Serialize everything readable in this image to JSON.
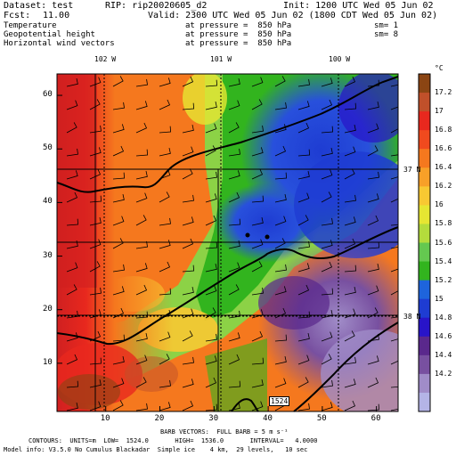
{
  "header": {
    "dataset": "Dataset: test",
    "rip": "RIP: rip20020605_d2",
    "init": "Init: 1200 UTC Wed 05 Jun 02",
    "fcst_label": "Fcst:",
    "fcst_value": "11.00",
    "valid": "Valid: 2300 UTC Wed 05 Jun 02 (1800 CDT Wed 05 Jun 02)"
  },
  "fields": [
    {
      "name": "Temperature",
      "level": "at pressure =  850 hPa",
      "sm": "sm= 1"
    },
    {
      "name": "Geopotential height",
      "level": "at pressure =  850 hPa",
      "sm": "sm= 8"
    },
    {
      "name": "Horizontal wind vectors",
      "level": "at pressure =  850 hPa",
      "sm": ""
    }
  ],
  "chart_data": {
    "type": "heatmap",
    "title": "",
    "x_ticks": [
      10,
      20,
      30,
      40,
      50,
      60
    ],
    "y_ticks": [
      10,
      20,
      30,
      40,
      50,
      60
    ],
    "xlim": [
      1,
      64
    ],
    "ylim": [
      1,
      64
    ],
    "lon_labels": [
      "102 W",
      "101 W",
      "100 W"
    ],
    "lat_labels": [
      "37 N",
      "38 N"
    ],
    "colorbar_unit": "°C",
    "colorbar_values": [
      "17.2",
      "17",
      "16.8",
      "16.6",
      "16.4",
      "16.2",
      "16",
      "15.8",
      "15.6",
      "15.4",
      "15.2",
      "15",
      "14.8",
      "14.6",
      "14.4",
      "14.2"
    ],
    "colorbar_colors": [
      "#8b4513",
      "#c0502a",
      "#e8281e",
      "#f04a1e",
      "#f5781e",
      "#f8a028",
      "#f8c832",
      "#e6e632",
      "#b4dc3c",
      "#64c850",
      "#32b41e",
      "#1e64dc",
      "#1e3cd2",
      "#2814c8",
      "#5a288c",
      "#7850a0",
      "#a08cc8",
      "#b4b4e6"
    ],
    "contour_label": "1524"
  },
  "footer": {
    "barb": "BARB VECTORS:  FULL BARB = 5 m s⁻¹",
    "contours": "CONTOURS:  UNITS=m  LOW=  1524.0       HIGH=  1536.0       INTERVAL=   4.0000",
    "model": "Model info: V3.5.0 No Cumulus Blackadar  Simple ice    4 km,  29 levels,   10 sec"
  }
}
